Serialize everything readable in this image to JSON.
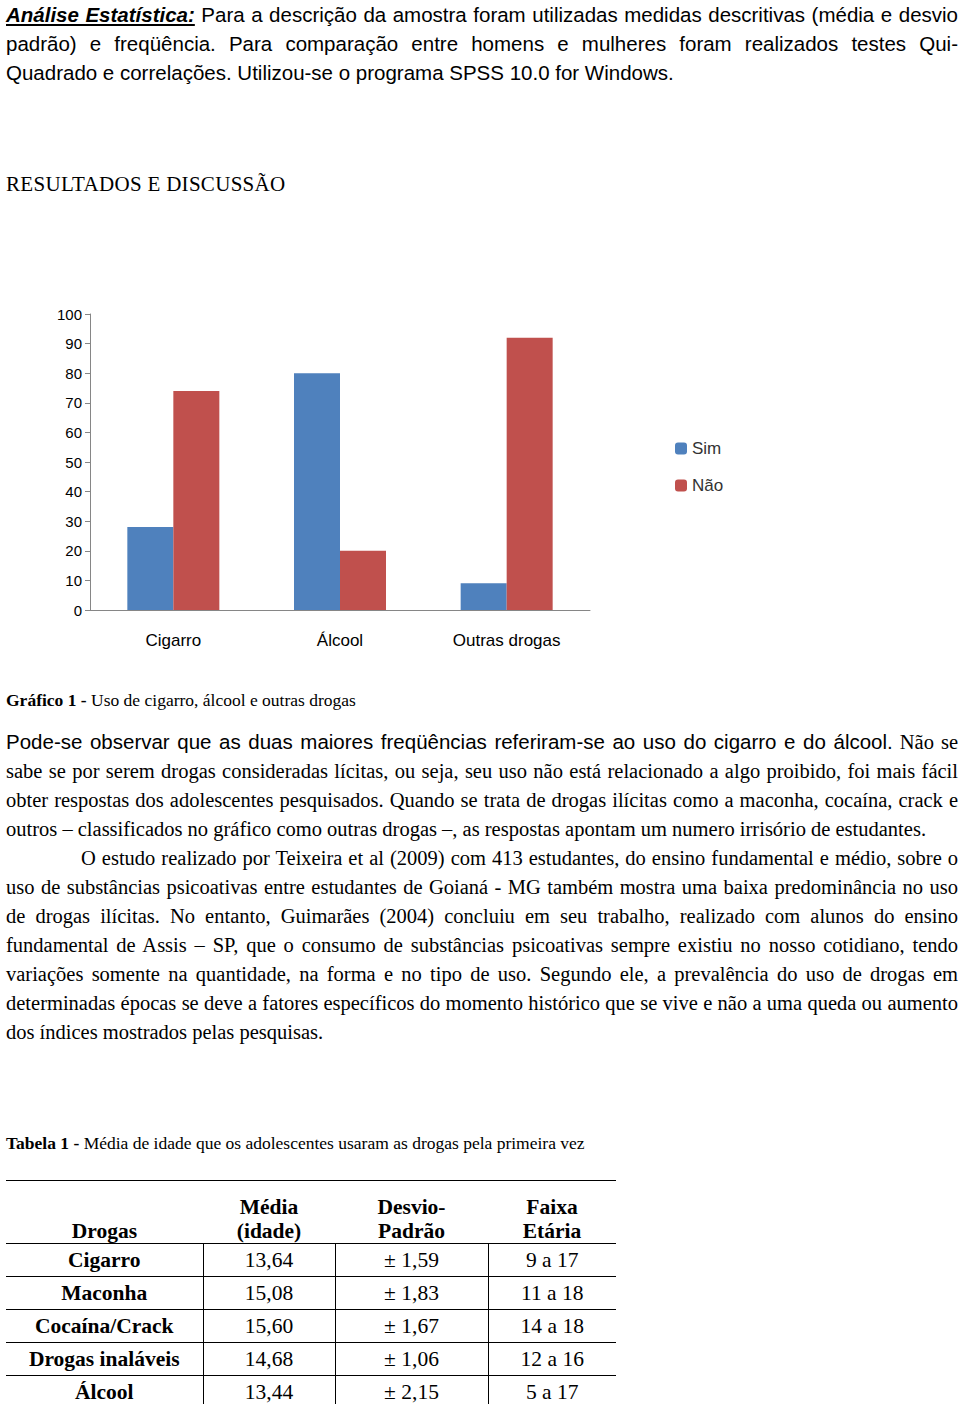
{
  "intro": {
    "lead": "Análise Estatística:",
    "text": "Para a descrição da amostra foram utilizadas medidas descritivas (média e desvio padrão) e freqüência. Para comparação entre homens e mulheres foram realizados testes Qui-Quadrado e correlações. Utilizou-se o programa SPSS 10.0 for Windows."
  },
  "heading": "RESULTADOS E DISCUSSÃO",
  "chart_data": {
    "type": "bar",
    "categories": [
      "Cigarro",
      "Álcool",
      "Outras drogas"
    ],
    "series": [
      {
        "name": "Sim",
        "color": "#4f81bd",
        "values": [
          28,
          80,
          9
        ]
      },
      {
        "name": "Não",
        "color": "#c0504d",
        "values": [
          74,
          20,
          92
        ]
      }
    ],
    "ylim": [
      0,
      100
    ],
    "yticks": [
      0,
      10,
      20,
      30,
      40,
      50,
      60,
      70,
      80,
      90,
      100
    ],
    "grid": false,
    "legend": "right"
  },
  "chart_caption": {
    "label": "Gráfico 1 -",
    "text": "Uso de cigarro, álcool e outras drogas"
  },
  "body": [
    {
      "sans": "Pode-se observar que as duas maiores freqüências referiram-se ao uso do cigarro e do álcool.",
      "serif": "Não se sabe se por serem drogas consideradas lícitas, ou seja, seu uso não está relacionado a algo proibido, foi mais fácil obter respostas dos adolescentes pesquisados. Quando se trata de drogas ilícitas como a maconha, cocaína, crack e outros – classificados no gráfico como outras drogas –, as respostas apontam um numero irrisório de estudantes."
    },
    {
      "serif": "O estudo realizado por Teixeira et al (2009) com 413 estudantes, do ensino fundamental e médio, sobre o uso de substâncias psicoativas entre estudantes de Goianá - MG também mostra uma baixa predominância no uso de drogas ilícitas. No entanto, Guimarães (2004) concluiu em seu trabalho, realizado com alunos do ensino fundamental de Assis – SP, que o consumo de substâncias psicoativas sempre existiu no nosso cotidiano, tendo variações somente na quantidade, na forma e no tipo de uso. Segundo ele, a prevalência do uso de drogas em determinadas épocas se deve a fatores específicos do momento histórico que se vive e não a uma queda ou aumento dos índices mostrados pelas pesquisas."
    }
  ],
  "table_caption": {
    "label": "Tabela 1 -",
    "text": "Média de idade que os adolescentes usaram as drogas pela primeira vez"
  },
  "table": {
    "header": [
      [
        "Drogas"
      ],
      [
        "Média",
        "(idade)"
      ],
      [
        "Desvio-",
        "Padrão"
      ],
      [
        "Faixa",
        "Etária"
      ]
    ],
    "rows": [
      [
        "Cigarro",
        "13,64",
        "± 1,59",
        "9 a 17"
      ],
      [
        "Maconha",
        "15,08",
        "± 1,83",
        "11 a 18"
      ],
      [
        "Cocaína/Crack",
        "15,60",
        "± 1,67",
        "14 a 18"
      ],
      [
        "Drogas inaláveis",
        "14,68",
        "± 1,06",
        "12 a 16"
      ],
      [
        "Álcool",
        "13,44",
        "± 2,15",
        "5 a 17"
      ]
    ]
  }
}
